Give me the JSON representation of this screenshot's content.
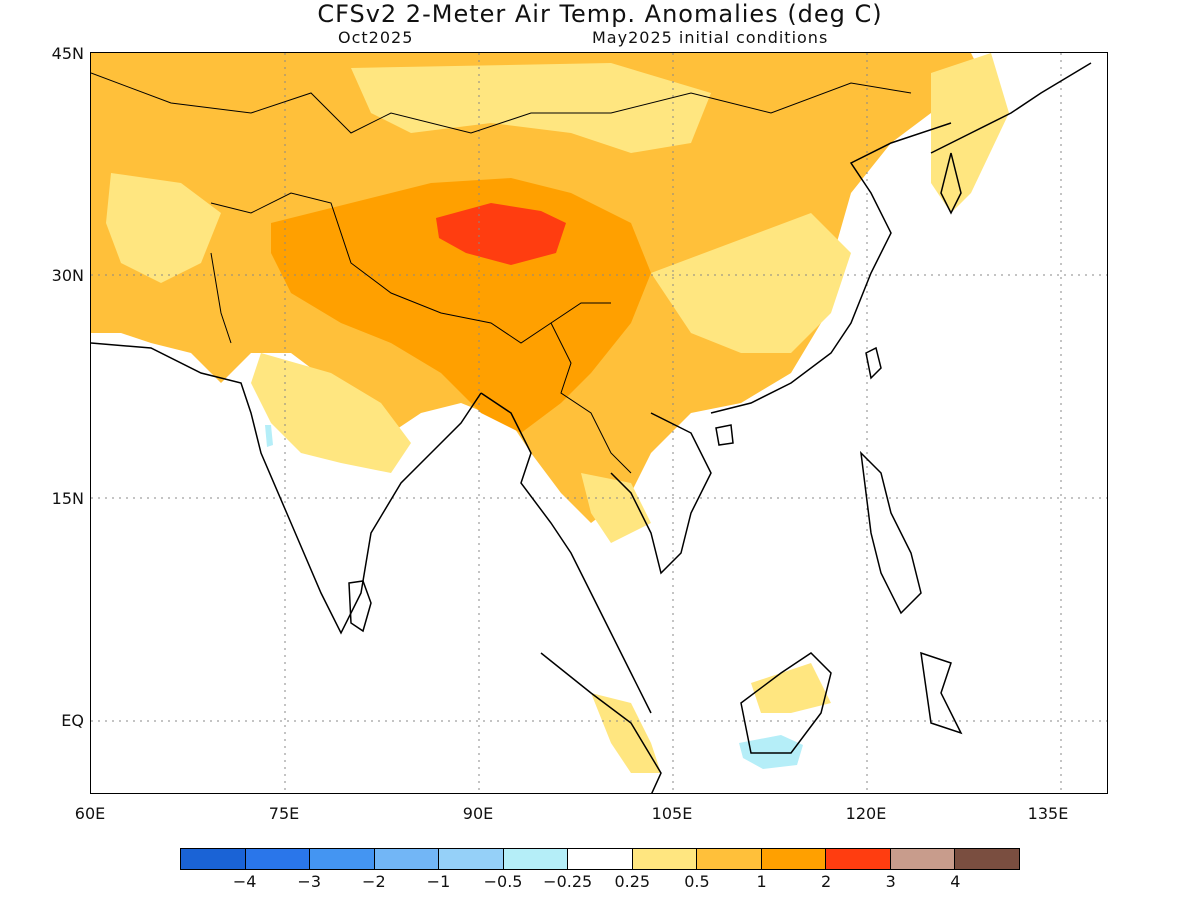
{
  "title": "CFSv2 2-Meter Air Temp. Anomalies (deg C)",
  "subtitle_left": "Oct2025",
  "subtitle_right": "May2025 initial conditions",
  "lat_labels": [
    "45N",
    "30N",
    "15N",
    "EQ"
  ],
  "lon_labels": [
    "60E",
    "75E",
    "90E",
    "105E",
    "120E",
    "135E"
  ],
  "colorbar": {
    "labels": [
      "-4",
      "-3",
      "-2",
      "-1",
      "-0.5",
      "-0.25",
      "0.25",
      "0.5",
      "1",
      "2",
      "3",
      "4"
    ],
    "colors": [
      "#1a63d6",
      "#2a76ea",
      "#4495f2",
      "#72b6f6",
      "#95d0f8",
      "#b5eef8",
      "#ffffff",
      "#ffe680",
      "#ffc03a",
      "#ffa000",
      "#ff3d10",
      "#c89c8c",
      "#7a4e40"
    ]
  },
  "legend_colors": {
    "anom_0_25_to_0_5": "#ffe680",
    "anom_0_5_to_1": "#ffc03a",
    "anom_1_to_2": "#ffa000",
    "anom_2_to_3": "#ff3d10",
    "anom_neg_0_25_to_0_5": "#b5eef8"
  }
}
